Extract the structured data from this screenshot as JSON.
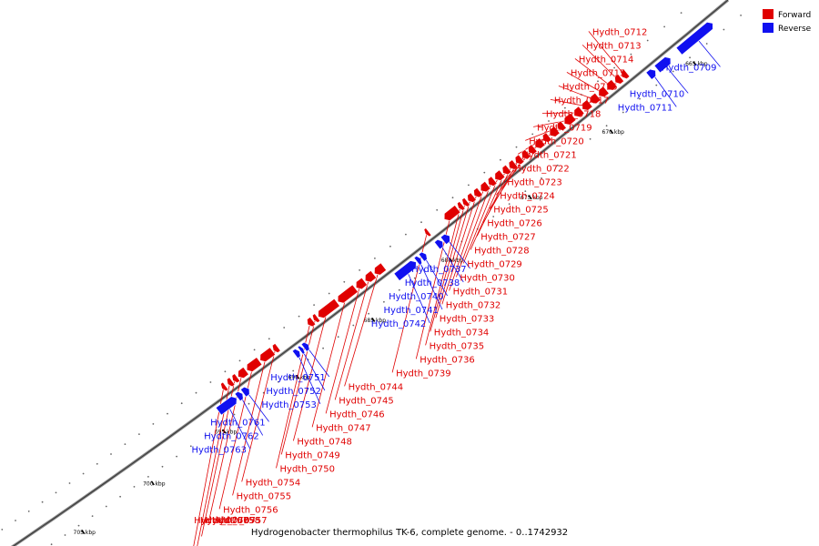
{
  "caption": "Hydrogenobacter thermophilus TK-6, complete genome. - 0..1742932",
  "legend": {
    "placement": "top-right",
    "forward": {
      "label": "Forward",
      "color": "#e00000"
    },
    "reverse": {
      "label": "Reverse",
      "color": "#1010f0"
    }
  },
  "scale": {
    "unit": "kbp",
    "view_start_bp": 662000,
    "view_end_bp": 710000
  },
  "ticks": [
    {
      "bp": 665000,
      "label": "665 kbp"
    },
    {
      "bp": 670000,
      "label": "670 kbp"
    },
    {
      "bp": 675000,
      "label": "675 kbp"
    },
    {
      "bp": 680000,
      "label": "680 kbp"
    },
    {
      "bp": 685000,
      "label": "685 kbp"
    },
    {
      "bp": 690000,
      "label": "690 kbp"
    },
    {
      "bp": 695000,
      "label": "695 kbp"
    },
    {
      "bp": 700000,
      "label": "700 kbp"
    },
    {
      "bp": 705000,
      "label": "705 kbp"
    }
  ],
  "genes": [
    {
      "name": "Hydth_0709",
      "strand": "reverse",
      "start": 663200,
      "end": 665200
    },
    {
      "name": "Hydth_0710",
      "strand": "reverse",
      "start": 665700,
      "end": 666500
    },
    {
      "name": "Hydth_0711",
      "strand": "reverse",
      "start": 666600,
      "end": 667000
    },
    {
      "name": "Hydth_0712",
      "strand": "forward",
      "start": 667700,
      "end": 668000
    },
    {
      "name": "Hydth_0713",
      "strand": "forward",
      "start": 668050,
      "end": 668400
    },
    {
      "name": "Hydth_0714",
      "strand": "forward",
      "start": 668450,
      "end": 668900
    },
    {
      "name": "Hydth_0715",
      "strand": "forward",
      "start": 668950,
      "end": 669400
    },
    {
      "name": "Hydth_0716",
      "strand": "forward",
      "start": 669450,
      "end": 669900
    },
    {
      "name": "Hydth_0717",
      "strand": "forward",
      "start": 669950,
      "end": 670400
    },
    {
      "name": "Hydth_0718",
      "strand": "forward",
      "start": 670450,
      "end": 670900
    },
    {
      "name": "Hydth_0719",
      "strand": "forward",
      "start": 670950,
      "end": 671500
    },
    {
      "name": "Hydth_0720",
      "strand": "forward",
      "start": 671550,
      "end": 671900
    },
    {
      "name": "Hydth_0721",
      "strand": "forward",
      "start": 671950,
      "end": 672400
    },
    {
      "name": "Hydth_0722",
      "strand": "forward",
      "start": 672450,
      "end": 672800
    },
    {
      "name": "Hydth_0723",
      "strand": "forward",
      "start": 672850,
      "end": 673300
    },
    {
      "name": "Hydth_0724",
      "strand": "forward",
      "start": 673350,
      "end": 673700
    },
    {
      "name": "Hydth_0725",
      "strand": "forward",
      "start": 673750,
      "end": 674100
    },
    {
      "name": "Hydth_0726",
      "strand": "forward",
      "start": 674150,
      "end": 674500
    },
    {
      "name": "Hydth_0727",
      "strand": "forward",
      "start": 674550,
      "end": 674900
    },
    {
      "name": "Hydth_0728",
      "strand": "forward",
      "start": 674950,
      "end": 675300
    },
    {
      "name": "Hydth_0729",
      "strand": "forward",
      "start": 675350,
      "end": 675800
    },
    {
      "name": "Hydth_0730",
      "strand": "forward",
      "start": 675850,
      "end": 676200
    },
    {
      "name": "Hydth_0731",
      "strand": "forward",
      "start": 676250,
      "end": 676700
    },
    {
      "name": "Hydth_0732",
      "strand": "forward",
      "start": 676750,
      "end": 677100
    },
    {
      "name": "Hydth_0733",
      "strand": "forward",
      "start": 677150,
      "end": 677500
    },
    {
      "name": "Hydth_0734",
      "strand": "forward",
      "start": 677550,
      "end": 677800
    },
    {
      "name": "Hydth_0735",
      "strand": "forward",
      "start": 677850,
      "end": 678100
    },
    {
      "name": "Hydth_0736",
      "strand": "forward",
      "start": 678150,
      "end": 679000
    },
    {
      "name": "Hydth_0737",
      "strand": "reverse",
      "start": 679300,
      "end": 679700
    },
    {
      "name": "Hydth_0738",
      "strand": "reverse",
      "start": 679750,
      "end": 680100
    },
    {
      "name": "Hydth_0739",
      "strand": "forward",
      "start": 680000,
      "end": 680200
    },
    {
      "name": "Hydth_0740",
      "strand": "reverse",
      "start": 680800,
      "end": 681100
    },
    {
      "name": "Hydth_0741",
      "strand": "reverse",
      "start": 681150,
      "end": 681400
    },
    {
      "name": "Hydth_0742",
      "strand": "reverse",
      "start": 681450,
      "end": 682700
    },
    {
      "name": "Hydth_0744",
      "strand": "forward",
      "start": 682900,
      "end": 683500
    },
    {
      "name": "Hydth_0745",
      "strand": "forward",
      "start": 683550,
      "end": 684100
    },
    {
      "name": "Hydth_0746",
      "strand": "forward",
      "start": 684150,
      "end": 684700
    },
    {
      "name": "Hydth_0747",
      "strand": "forward",
      "start": 684750,
      "end": 685900
    },
    {
      "name": "Hydth_0748",
      "strand": "forward",
      "start": 685950,
      "end": 687200
    },
    {
      "name": "Hydth_0749",
      "strand": "forward",
      "start": 687250,
      "end": 687500
    },
    {
      "name": "Hydth_0750",
      "strand": "forward",
      "start": 687550,
      "end": 687900
    },
    {
      "name": "Hydth_0751",
      "strand": "reverse",
      "start": 688500,
      "end": 688800
    },
    {
      "name": "Hydth_0752",
      "strand": "reverse",
      "start": 688850,
      "end": 689050
    },
    {
      "name": "Hydth_0753",
      "strand": "reverse",
      "start": 689100,
      "end": 689400
    },
    {
      "name": "Hydth_0754",
      "strand": "forward",
      "start": 689900,
      "end": 690200
    },
    {
      "name": "Hydth_0755",
      "strand": "forward",
      "start": 690250,
      "end": 691100
    },
    {
      "name": "Hydth_0756",
      "strand": "forward",
      "start": 691150,
      "end": 692000
    },
    {
      "name": "Hydth_0757",
      "strand": "forward",
      "start": 692050,
      "end": 692600
    },
    {
      "name": "Hydth_0758",
      "strand": "forward",
      "start": 692650,
      "end": 692950
    },
    {
      "name": "Hydth_0759",
      "strand": "forward",
      "start": 693000,
      "end": 693300
    },
    {
      "name": "Hydth_0760",
      "strand": "forward",
      "start": 693450,
      "end": 693700
    },
    {
      "name": "Hydth_0761",
      "strand": "reverse",
      "start": 692500,
      "end": 692900
    },
    {
      "name": "Hydth_0762",
      "strand": "reverse",
      "start": 692950,
      "end": 693300
    },
    {
      "name": "Hydth_0763",
      "strand": "reverse",
      "start": 693350,
      "end": 694600
    }
  ]
}
